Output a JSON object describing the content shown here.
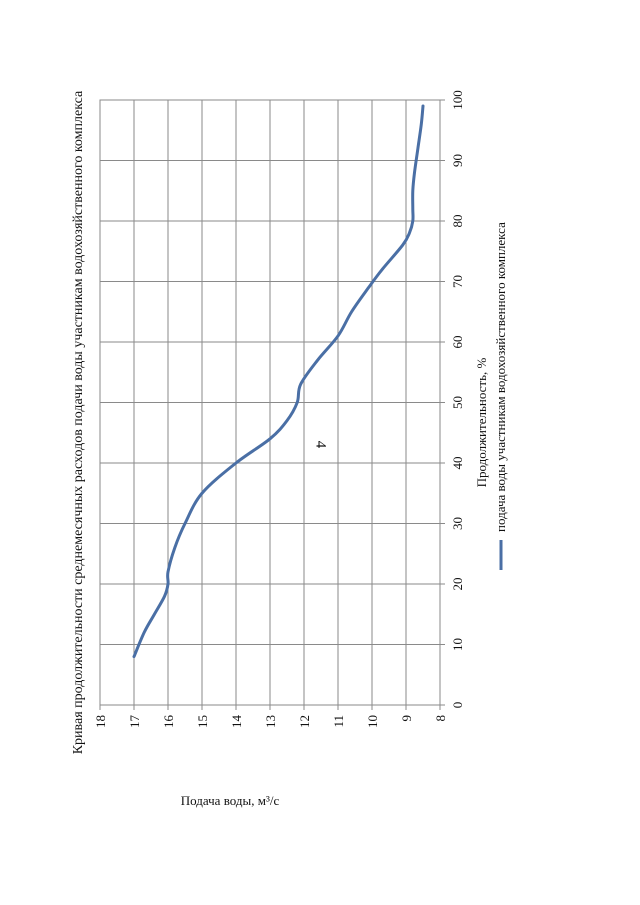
{
  "page_number": "4",
  "chart_data": {
    "type": "line",
    "title": "Кривая продолжительности среднемесячных расходов подачи воды участникам водохозяйственного комплекса",
    "xlabel": "Продолжительность, %",
    "ylabel": "Подача воды, м³/с",
    "xlim": [
      0,
      100
    ],
    "ylim": [
      8,
      18
    ],
    "x_ticks": [
      0,
      10,
      20,
      30,
      40,
      50,
      60,
      70,
      80,
      90,
      100
    ],
    "y_ticks": [
      8,
      9,
      10,
      11,
      12,
      13,
      14,
      15,
      16,
      17,
      18
    ],
    "grid": true,
    "legend": "bottom",
    "series": [
      {
        "name": "подача воды участникам водохозяйственного комплекса",
        "color": "#4a6fa5",
        "x": [
          8,
          12,
          15,
          18,
          20,
          22,
          26,
          30,
          35,
          40,
          44,
          47,
          50,
          53,
          57,
          61,
          65,
          69,
          72,
          76,
          78,
          80,
          82,
          85,
          88,
          92,
          96,
          99
        ],
        "y": [
          17.0,
          16.7,
          16.4,
          16.1,
          16.0,
          16.0,
          15.8,
          15.5,
          15.0,
          14.0,
          13.0,
          12.5,
          12.2,
          12.1,
          11.6,
          11.0,
          10.6,
          10.1,
          9.7,
          9.1,
          8.9,
          8.8,
          8.8,
          8.8,
          8.75,
          8.65,
          8.55,
          8.5
        ]
      }
    ]
  }
}
